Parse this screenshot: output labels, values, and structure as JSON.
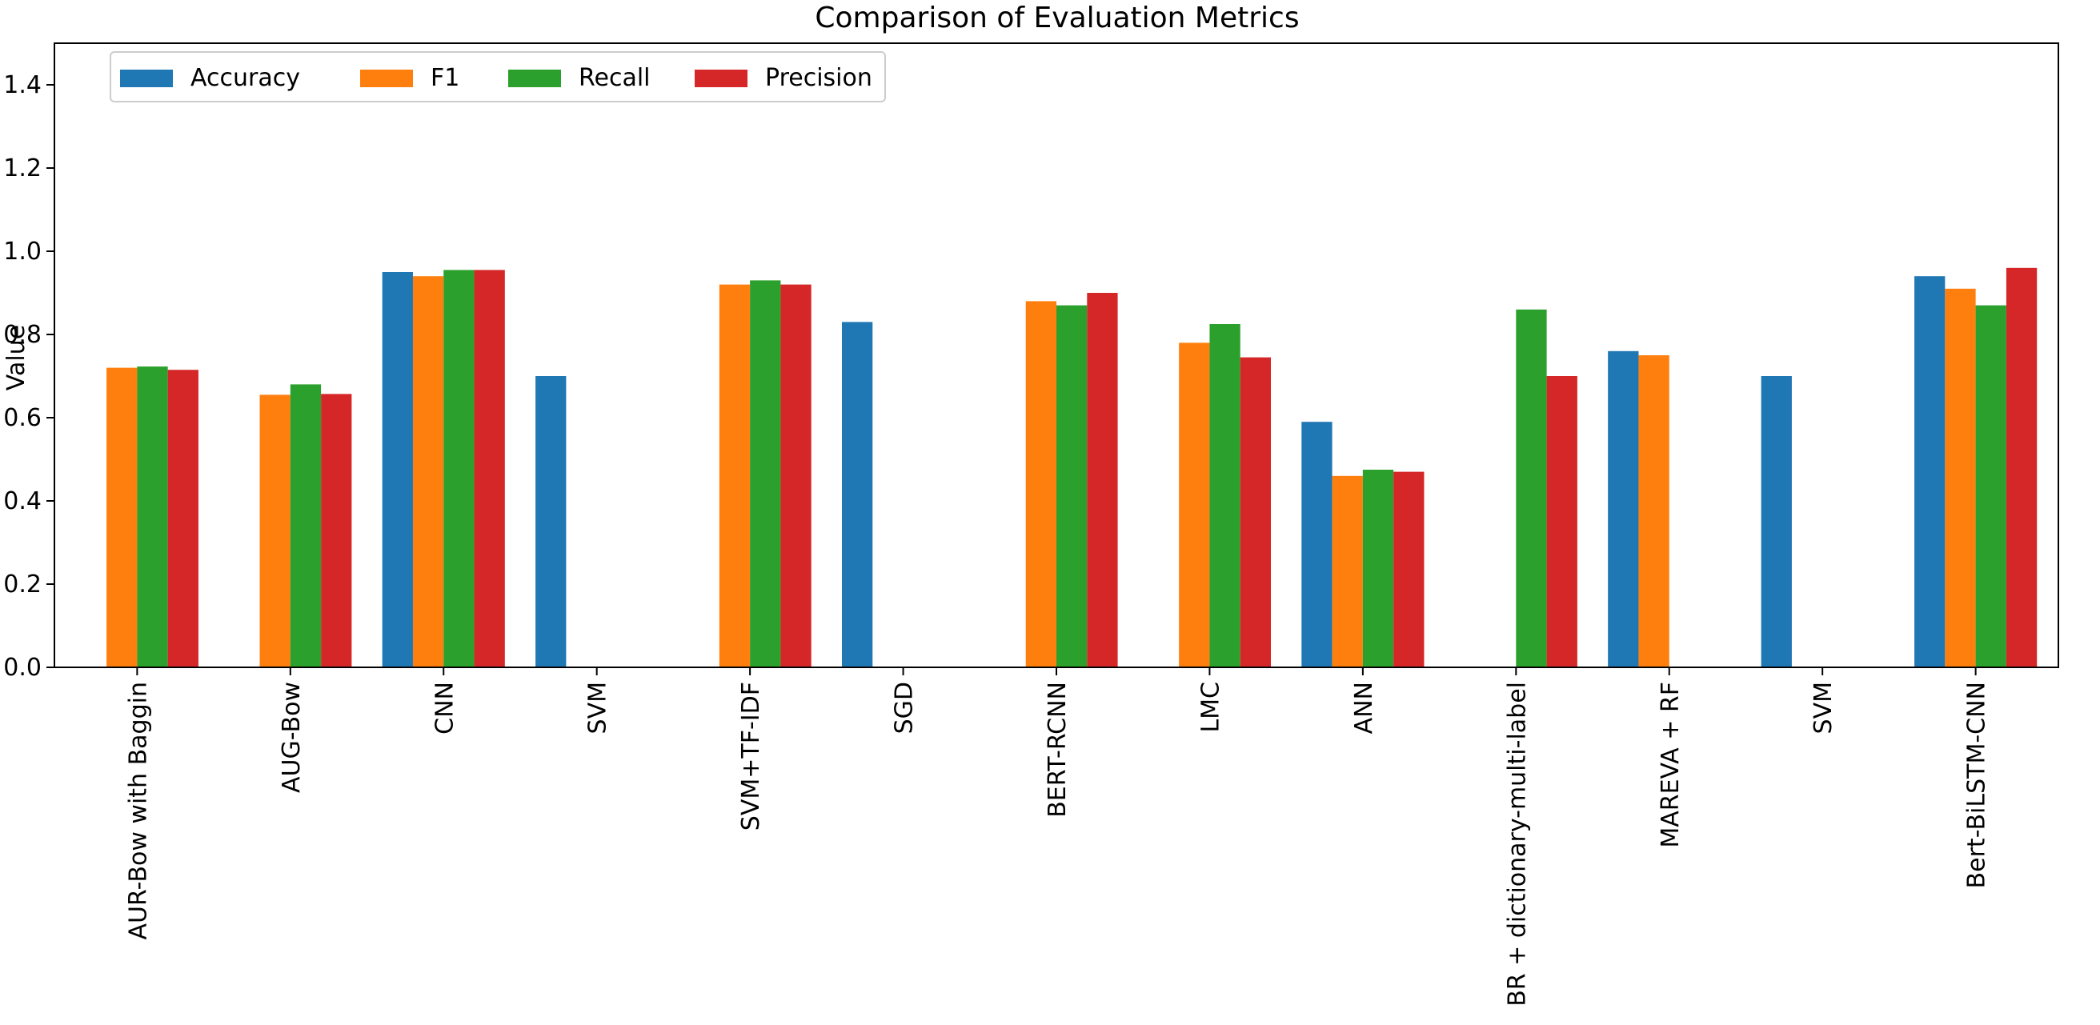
{
  "chart_data": {
    "type": "bar",
    "title": "Comparison of Evaluation Metrics",
    "xlabel": "",
    "ylabel": "Value",
    "ylim": [
      0,
      1.5
    ],
    "yticks": [
      "0.0",
      "0.2",
      "0.4",
      "0.6",
      "0.8",
      "1.0",
      "1.2",
      "1.4"
    ],
    "grid": false,
    "legend_position": "top-left",
    "categories": [
      "AUR-Bow with Baggin",
      "AUG-Bow",
      "CNN",
      "SVM",
      "SVM+TF-IDF",
      "SGD",
      "BERT-RCNN",
      "LMC",
      "ANN",
      "BR + dictionary-multi-label",
      "MAREVA + RF",
      "SVM",
      "Bert-BiLSTM-CNN"
    ],
    "series": [
      {
        "name": "Accuracy",
        "color": "#1f77b4",
        "values": [
          null,
          null,
          0.95,
          0.7,
          null,
          0.83,
          null,
          null,
          0.59,
          null,
          0.76,
          0.7,
          0.94
        ]
      },
      {
        "name": "F1",
        "color": "#ff7f0e",
        "values": [
          0.72,
          0.655,
          0.94,
          null,
          0.92,
          null,
          0.88,
          0.78,
          0.46,
          null,
          0.75,
          null,
          0.91
        ]
      },
      {
        "name": "Recall",
        "color": "#2ca02c",
        "values": [
          0.723,
          0.68,
          0.955,
          null,
          0.93,
          null,
          0.87,
          0.825,
          0.475,
          0.86,
          null,
          null,
          0.87
        ]
      },
      {
        "name": "Precision",
        "color": "#d62728",
        "values": [
          0.715,
          0.657,
          0.955,
          null,
          0.92,
          null,
          0.9,
          0.745,
          0.47,
          0.7,
          null,
          null,
          0.96
        ]
      }
    ]
  }
}
